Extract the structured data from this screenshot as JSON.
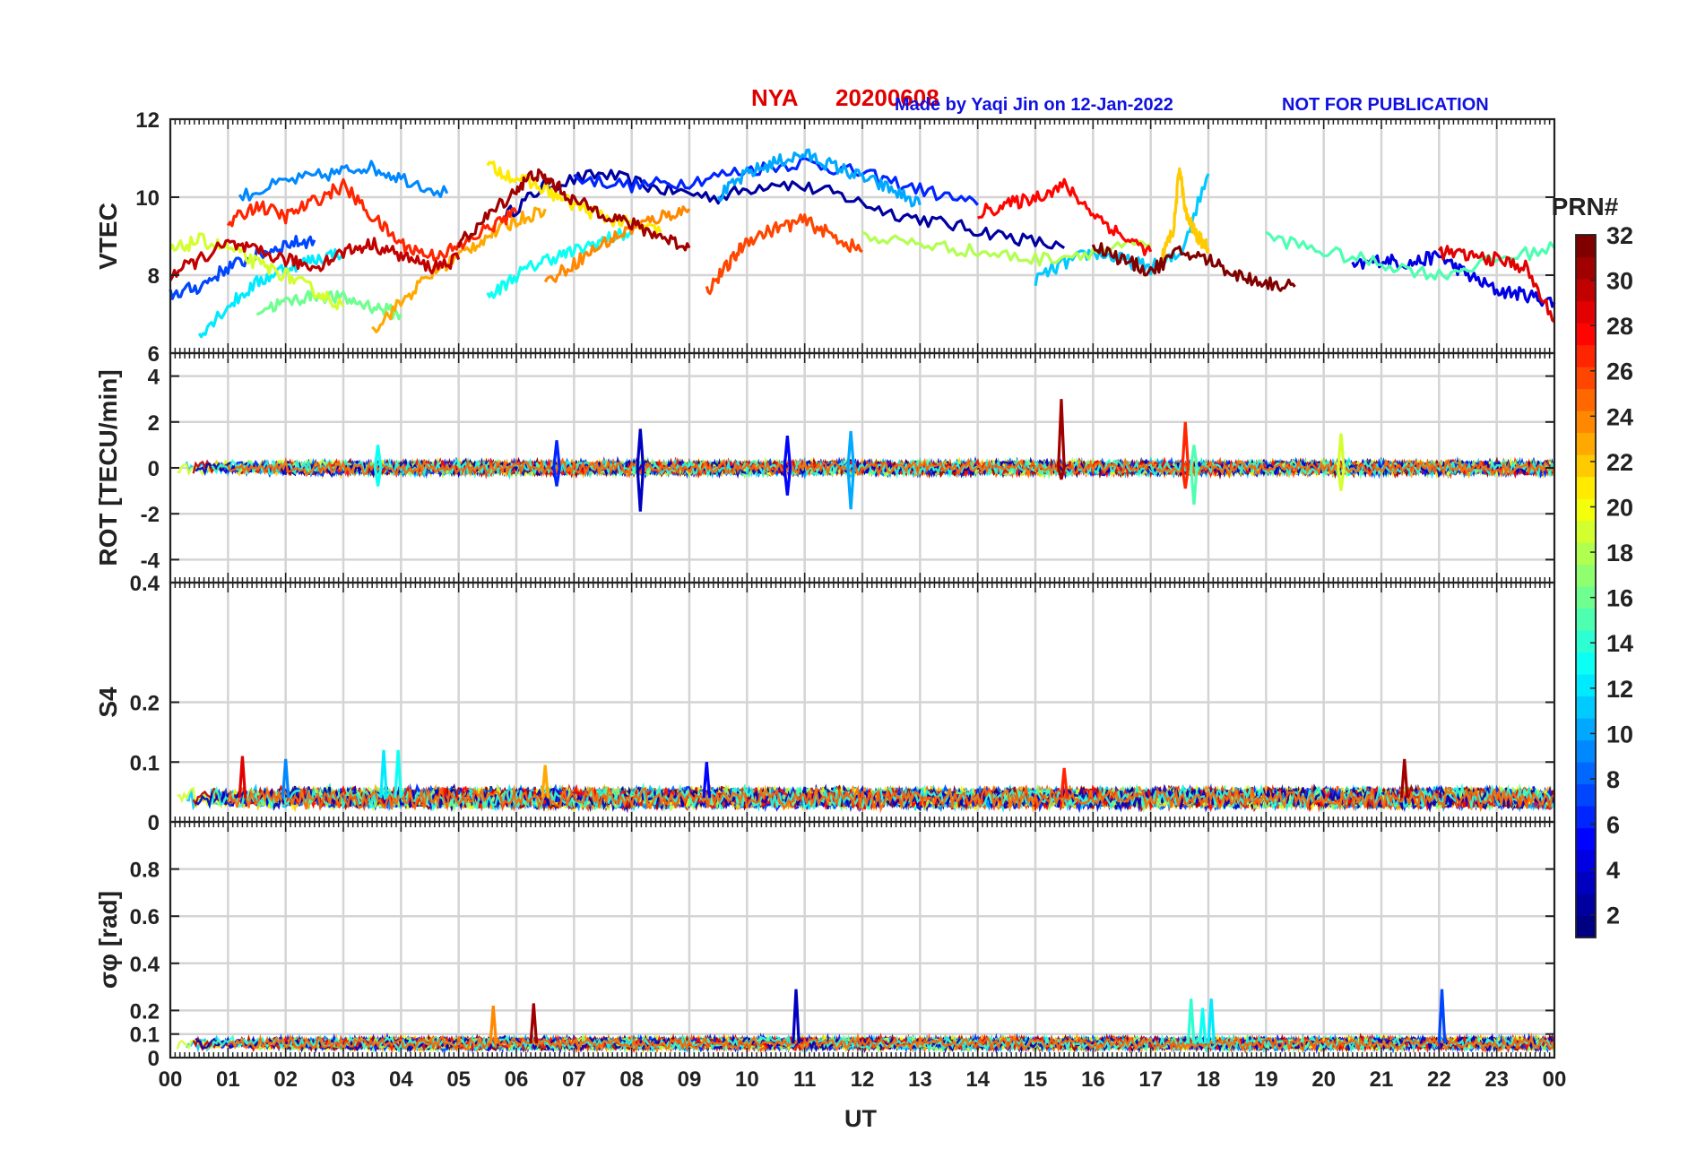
{
  "header": {
    "station": "NYA",
    "date": "20200608",
    "credit": "Made by Yaqi Jin on 12-Jan-2022",
    "notice": "NOT FOR PUBLICATION",
    "station_color": "#e00000",
    "credit_color": "#1010e0"
  },
  "x_axis": {
    "label": "UT",
    "range": [
      0,
      24
    ],
    "ticks": [
      "00",
      "01",
      "02",
      "03",
      "04",
      "05",
      "06",
      "07",
      "08",
      "09",
      "10",
      "11",
      "12",
      "13",
      "14",
      "15",
      "16",
      "17",
      "18",
      "19",
      "20",
      "21",
      "22",
      "23",
      "00"
    ]
  },
  "colorbar": {
    "title": "PRN#",
    "range": [
      1,
      32
    ],
    "tick_values": [
      2,
      4,
      6,
      8,
      10,
      12,
      14,
      16,
      18,
      20,
      22,
      24,
      26,
      28,
      30,
      32
    ],
    "tick_labels": [
      "2",
      "4",
      "6",
      "8",
      "10",
      "12",
      "14",
      "16",
      "18",
      "20",
      "22",
      "24",
      "26",
      "28",
      "30",
      "32"
    ],
    "colormap": "jet"
  },
  "chart_data": [
    {
      "type": "line",
      "ylabel": "VTEC",
      "ylim": [
        6,
        12
      ],
      "yticks": [
        6,
        8,
        10,
        12
      ],
      "ytick_labels": [
        "6",
        "8",
        "10",
        "12"
      ],
      "grid": true,
      "series": [
        {
          "prn": 2,
          "x": [
            5.8,
            6.5,
            7.5,
            8.5,
            9.5,
            10.5,
            11.5,
            12.5,
            13.5,
            14.5,
            15.5
          ],
          "y": [
            9.5,
            10.3,
            10.6,
            10.2,
            10.0,
            10.4,
            10.1,
            9.6,
            9.3,
            9.0,
            8.7
          ]
        },
        {
          "prn": 4,
          "x": [
            20.5,
            21.0,
            21.5,
            22.0,
            22.5,
            23.0,
            23.5,
            24.0
          ],
          "y": [
            8.2,
            8.4,
            8.3,
            8.5,
            8.0,
            7.6,
            7.5,
            7.3
          ]
        },
        {
          "prn": 6,
          "x": [
            7.0,
            8.0,
            9.0,
            10.0,
            11.0,
            12.0,
            13.0,
            14.0
          ],
          "y": [
            10.5,
            10.3,
            10.4,
            10.7,
            10.9,
            10.6,
            10.2,
            9.8
          ]
        },
        {
          "prn": 7,
          "x": [
            0.0,
            0.5,
            1.0,
            1.5,
            2.0,
            2.5
          ],
          "y": [
            7.5,
            7.7,
            8.2,
            8.5,
            8.8,
            8.9
          ]
        },
        {
          "prn": 9,
          "x": [
            1.2,
            2.0,
            2.8,
            3.4,
            4.0,
            4.8
          ],
          "y": [
            10.0,
            10.4,
            10.6,
            10.8,
            10.5,
            10.1
          ]
        },
        {
          "prn": 10,
          "x": [
            9.5,
            10.0,
            10.5,
            11.0,
            11.5,
            12.0,
            12.5,
            13.0
          ],
          "y": [
            10.0,
            10.6,
            10.9,
            11.1,
            10.8,
            10.5,
            10.2,
            9.8
          ]
        },
        {
          "prn": 11,
          "x": [
            15.0,
            15.5,
            16.0,
            16.5,
            17.0,
            17.5,
            18.0
          ],
          "y": [
            7.9,
            8.3,
            8.6,
            8.4,
            8.2,
            8.5,
            10.6
          ]
        },
        {
          "prn": 12,
          "x": [
            0.5,
            1.0,
            1.5,
            2.0,
            2.5,
            3.0
          ],
          "y": [
            6.5,
            7.2,
            7.8,
            8.2,
            8.4,
            8.6
          ]
        },
        {
          "prn": 13,
          "x": [
            5.5,
            6.0,
            6.5,
            7.0,
            7.5,
            8.0
          ],
          "y": [
            7.4,
            8.0,
            8.4,
            8.6,
            8.9,
            9.1
          ]
        },
        {
          "prn": 15,
          "x": [
            19.0,
            20.0,
            21.0,
            22.0,
            23.0,
            24.0
          ],
          "y": [
            9.0,
            8.6,
            8.3,
            8.0,
            8.4,
            8.7
          ]
        },
        {
          "prn": 16,
          "x": [
            1.5,
            2.0,
            2.5,
            3.0,
            3.5,
            4.0
          ],
          "y": [
            7.1,
            7.3,
            7.5,
            7.4,
            7.2,
            7.0
          ]
        },
        {
          "prn": 18,
          "x": [
            12.0,
            13.0,
            14.0,
            15.0,
            16.0,
            17.0
          ],
          "y": [
            9.0,
            8.8,
            8.6,
            8.4,
            8.6,
            8.8
          ]
        },
        {
          "prn": 19,
          "x": [
            0.0,
            0.5,
            1.0,
            1.5,
            2.0,
            2.5,
            3.0
          ],
          "y": [
            8.6,
            8.9,
            8.7,
            8.3,
            8.0,
            7.6,
            7.2
          ]
        },
        {
          "prn": 21,
          "x": [
            5.5,
            6.0,
            6.5,
            7.0,
            7.5,
            8.0,
            8.5
          ],
          "y": [
            10.8,
            10.5,
            10.2,
            9.8,
            9.5,
            9.3,
            9.1
          ]
        },
        {
          "prn": 22,
          "x": [
            17.2,
            17.4,
            17.5,
            17.6,
            17.8,
            18.0
          ],
          "y": [
            8.5,
            9.2,
            10.8,
            9.6,
            9.0,
            8.7
          ]
        },
        {
          "prn": 23,
          "x": [
            3.5,
            4.0,
            4.5,
            5.0,
            5.5,
            6.0,
            6.5
          ],
          "y": [
            6.6,
            7.3,
            8.0,
            8.5,
            9.0,
            9.4,
            9.7
          ]
        },
        {
          "prn": 24,
          "x": [
            6.5,
            7.0,
            7.5,
            8.0,
            8.5,
            9.0
          ],
          "y": [
            7.8,
            8.3,
            8.8,
            9.2,
            9.5,
            9.7
          ]
        },
        {
          "prn": 26,
          "x": [
            9.3,
            9.7,
            10.0,
            10.5,
            11.0,
            11.5,
            12.0
          ],
          "y": [
            7.6,
            8.3,
            8.9,
            9.2,
            9.4,
            9.0,
            8.6
          ]
        },
        {
          "prn": 27,
          "x": [
            1.0,
            1.5,
            2.0,
            2.5,
            3.0,
            3.5,
            4.0,
            4.5,
            5.0,
            5.5,
            6.0
          ],
          "y": [
            9.3,
            9.8,
            9.5,
            9.9,
            10.3,
            9.5,
            8.8,
            8.5,
            8.7,
            9.2,
            9.6
          ]
        },
        {
          "prn": 28,
          "x": [
            14.0,
            14.5,
            15.0,
            15.5,
            16.0,
            16.5,
            17.0
          ],
          "y": [
            9.6,
            9.8,
            10.0,
            10.3,
            9.6,
            9.0,
            8.6
          ]
        },
        {
          "prn": 29,
          "x": [
            22.0,
            22.5,
            23.0,
            23.5,
            24.0
          ],
          "y": [
            8.6,
            8.5,
            8.4,
            8.2,
            6.8
          ]
        },
        {
          "prn": 30,
          "x": [
            0.0,
            0.5,
            1.0,
            1.5,
            2.0,
            2.5,
            3.0,
            3.5,
            4.0,
            4.5,
            5.0
          ],
          "y": [
            8.0,
            8.4,
            8.8,
            8.6,
            8.4,
            8.2,
            8.6,
            8.8,
            8.5,
            8.2,
            8.4
          ]
        },
        {
          "prn": 31,
          "x": [
            5.0,
            5.5,
            6.0,
            6.3,
            6.6,
            7.0,
            7.5,
            8.0,
            8.5,
            9.0
          ],
          "y": [
            8.8,
            9.5,
            10.2,
            10.6,
            10.4,
            9.9,
            9.6,
            9.3,
            9.0,
            8.7
          ]
        },
        {
          "prn": 32,
          "x": [
            16.0,
            16.5,
            17.0,
            17.5,
            18.0,
            18.5,
            19.0,
            19.5
          ],
          "y": [
            8.8,
            8.4,
            8.1,
            8.6,
            8.4,
            8.0,
            7.8,
            7.7
          ]
        }
      ]
    },
    {
      "type": "line",
      "ylabel": "ROT [TECU/min]",
      "ylim": [
        -5,
        5
      ],
      "yticks": [
        -4,
        -2,
        0,
        2,
        4
      ],
      "ytick_labels": [
        "-4",
        "-2",
        "0",
        "2",
        "4"
      ],
      "grid": true,
      "noise_amplitude": 0.35,
      "spikes": [
        {
          "x": 8.15,
          "y": [
            1.7,
            -1.9
          ],
          "prn": 3
        },
        {
          "x": 10.7,
          "y": [
            1.4,
            -1.2
          ],
          "prn": 5
        },
        {
          "x": 11.8,
          "y": [
            1.6,
            -1.8
          ],
          "prn": 10
        },
        {
          "x": 15.45,
          "y": [
            3.0,
            -0.5
          ],
          "prn": 31
        },
        {
          "x": 17.6,
          "y": [
            2.0,
            -0.9
          ],
          "prn": 27
        },
        {
          "x": 17.75,
          "y": [
            1.0,
            -1.6
          ],
          "prn": 15
        },
        {
          "x": 20.3,
          "y": [
            1.5,
            -1.0
          ],
          "prn": 19
        },
        {
          "x": 6.7,
          "y": [
            1.2,
            -0.8
          ],
          "prn": 6
        },
        {
          "x": 3.6,
          "y": [
            1.0,
            -0.8
          ],
          "prn": 13
        }
      ]
    },
    {
      "type": "line",
      "ylabel": "S4",
      "ylim": [
        0,
        0.4
      ],
      "yticks": [
        0,
        0.1,
        0.2,
        0.4
      ],
      "ytick_labels": [
        "0",
        "0.1",
        "0.2",
        "0.4"
      ],
      "grid": true,
      "baseline": 0.04,
      "noise_amplitude": 0.02,
      "spikes": [
        {
          "x": 1.25,
          "y": [
            0.11
          ],
          "prn": 29
        },
        {
          "x": 2.0,
          "y": [
            0.105
          ],
          "prn": 9
        },
        {
          "x": 3.7,
          "y": [
            0.12
          ],
          "prn": 12
        },
        {
          "x": 3.95,
          "y": [
            0.12
          ],
          "prn": 13
        },
        {
          "x": 9.3,
          "y": [
            0.1
          ],
          "prn": 5
        },
        {
          "x": 21.4,
          "y": [
            0.105
          ],
          "prn": 31
        },
        {
          "x": 6.5,
          "y": [
            0.095
          ],
          "prn": 23
        },
        {
          "x": 15.5,
          "y": [
            0.09
          ],
          "prn": 27
        }
      ]
    },
    {
      "type": "line",
      "ylabel": "σφ [rad]",
      "ylim": [
        0,
        1
      ],
      "yticks": [
        0,
        0.1,
        0.2,
        0.4,
        0.6,
        0.8
      ],
      "ytick_labels": [
        "0",
        "0.1",
        "0.2",
        "0.4",
        "0.6",
        "0.8"
      ],
      "grid": true,
      "baseline": 0.06,
      "noise_amplitude": 0.03,
      "spikes": [
        {
          "x": 5.6,
          "y": [
            0.22
          ],
          "prn": 24
        },
        {
          "x": 6.3,
          "y": [
            0.23
          ],
          "prn": 31
        },
        {
          "x": 10.85,
          "y": [
            0.29
          ],
          "prn": 3
        },
        {
          "x": 17.7,
          "y": [
            0.25
          ],
          "prn": 14
        },
        {
          "x": 17.9,
          "y": [
            0.21
          ],
          "prn": 13
        },
        {
          "x": 18.05,
          "y": [
            0.25
          ],
          "prn": 12
        },
        {
          "x": 22.05,
          "y": [
            0.29
          ],
          "prn": 7
        }
      ]
    }
  ]
}
